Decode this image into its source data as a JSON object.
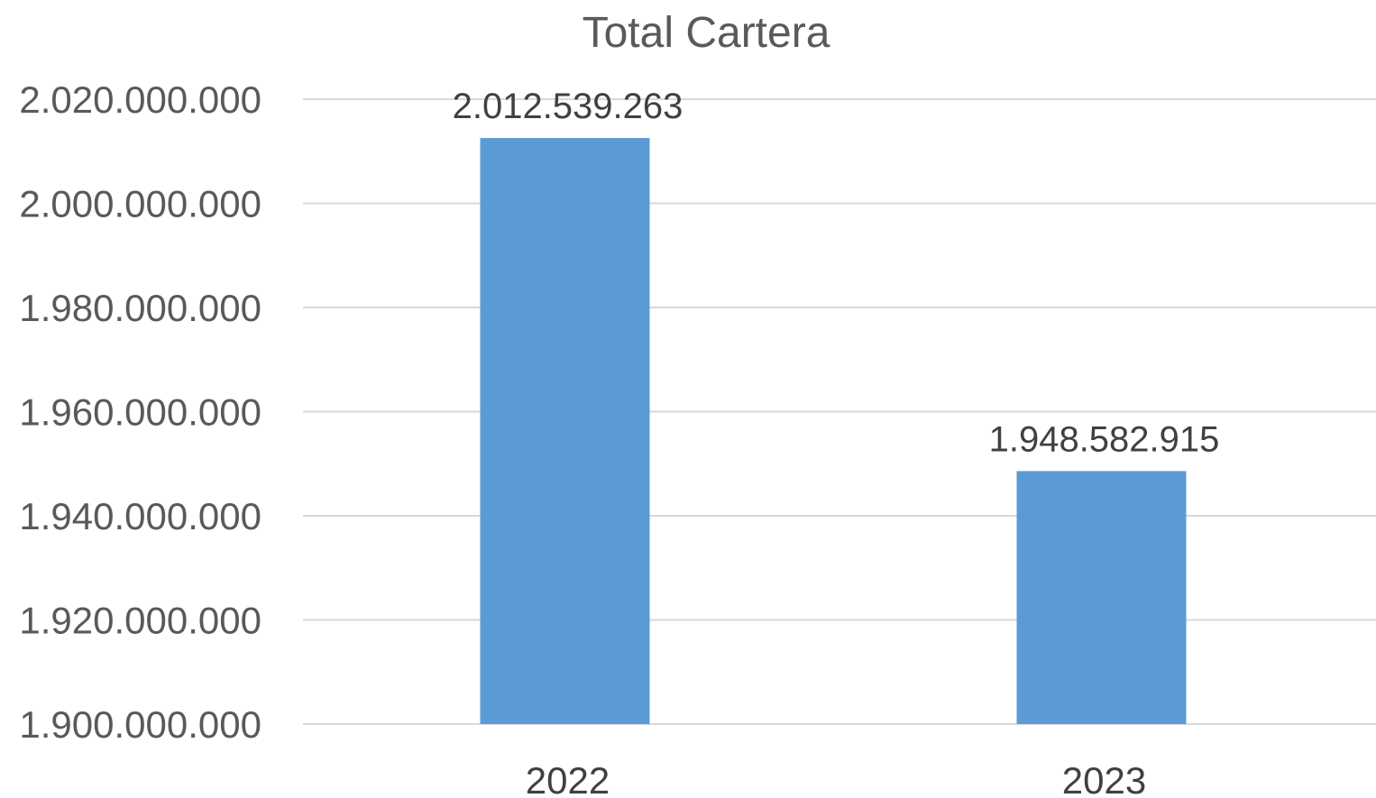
{
  "chart_data": {
    "type": "bar",
    "title": "Total Cartera",
    "xlabel": "",
    "ylabel": "",
    "categories": [
      "2022",
      "2023"
    ],
    "values": [
      2012539263,
      1948582915
    ],
    "data_labels": [
      "2.012.539.263",
      "1.948.582.915"
    ],
    "ylim": [
      1900000000,
      2020000000
    ],
    "yticks": [
      1900000000,
      1920000000,
      1940000000,
      1960000000,
      1980000000,
      2000000000,
      2020000000
    ],
    "ytick_labels": [
      "1.900.000.000",
      "1.920.000.000",
      "1.940.000.000",
      "1.960.000.000",
      "1.980.000.000",
      "2.000.000.000",
      "2.020.000.000"
    ],
    "grid": true,
    "legend": "none",
    "colors": {
      "bar": "#5b9bd5"
    }
  }
}
